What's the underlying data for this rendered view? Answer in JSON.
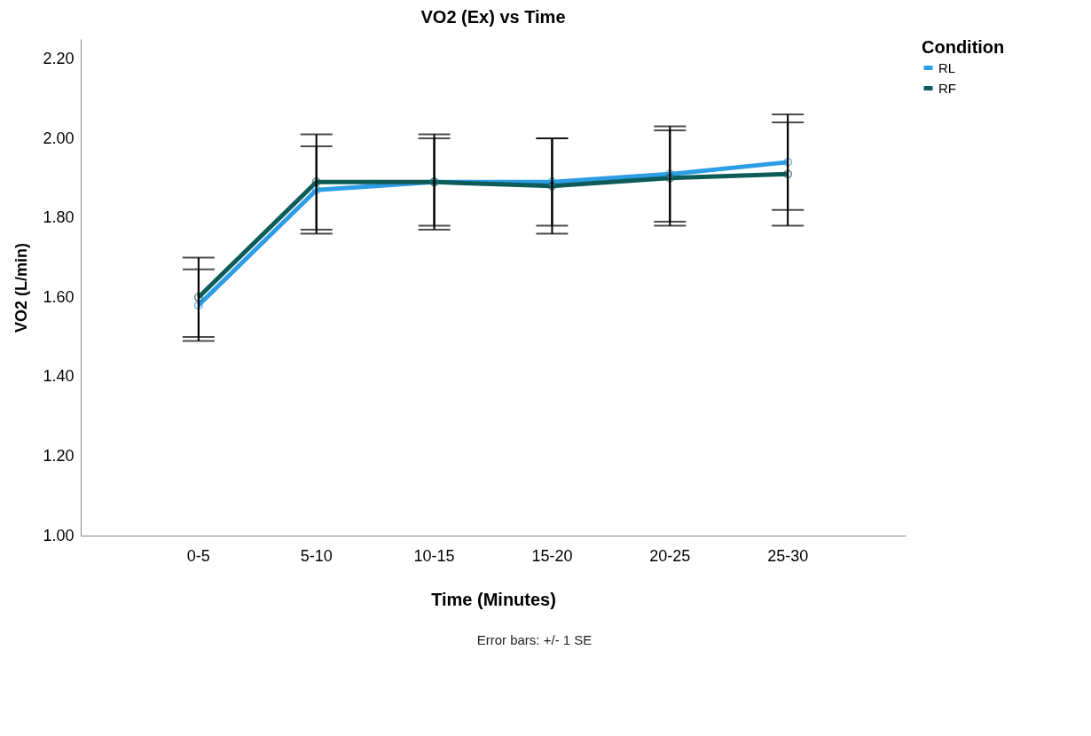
{
  "chart_data": {
    "type": "line",
    "title": "VO2 (Ex) vs Time",
    "xlabel": "Time (Minutes)",
    "ylabel": "VO2 (L/min)",
    "legend_title": "Condition",
    "categories": [
      "0-5",
      "5-10",
      "10-15",
      "15-20",
      "20-25",
      "25-30"
    ],
    "series": [
      {
        "name": "RL",
        "color": "#2d9de5",
        "values": [
          1.58,
          1.87,
          1.89,
          1.89,
          1.91,
          1.94
        ],
        "errors": [
          0.09,
          0.11,
          0.12,
          0.11,
          0.12,
          0.12
        ]
      },
      {
        "name": "RF",
        "color": "#0e5c59",
        "values": [
          1.6,
          1.89,
          1.89,
          1.88,
          1.9,
          1.91
        ],
        "errors": [
          0.1,
          0.12,
          0.11,
          0.12,
          0.12,
          0.13
        ]
      }
    ],
    "ylim": [
      1.0,
      2.25
    ],
    "yticks": [
      {
        "value": 1.0,
        "label": "1.00"
      },
      {
        "value": 1.2,
        "label": "1.20"
      },
      {
        "value": 1.4,
        "label": "1.40"
      },
      {
        "value": 1.6,
        "label": "1.60"
      },
      {
        "value": 1.8,
        "label": "1.80"
      },
      {
        "value": 2.0,
        "label": "2.00"
      },
      {
        "value": 2.2,
        "label": "2.20"
      }
    ],
    "grid": false,
    "legend": "top right",
    "marker": "circle",
    "line_style": "solid",
    "annotations": [
      "Error bars: +/- 1 SE"
    ]
  }
}
